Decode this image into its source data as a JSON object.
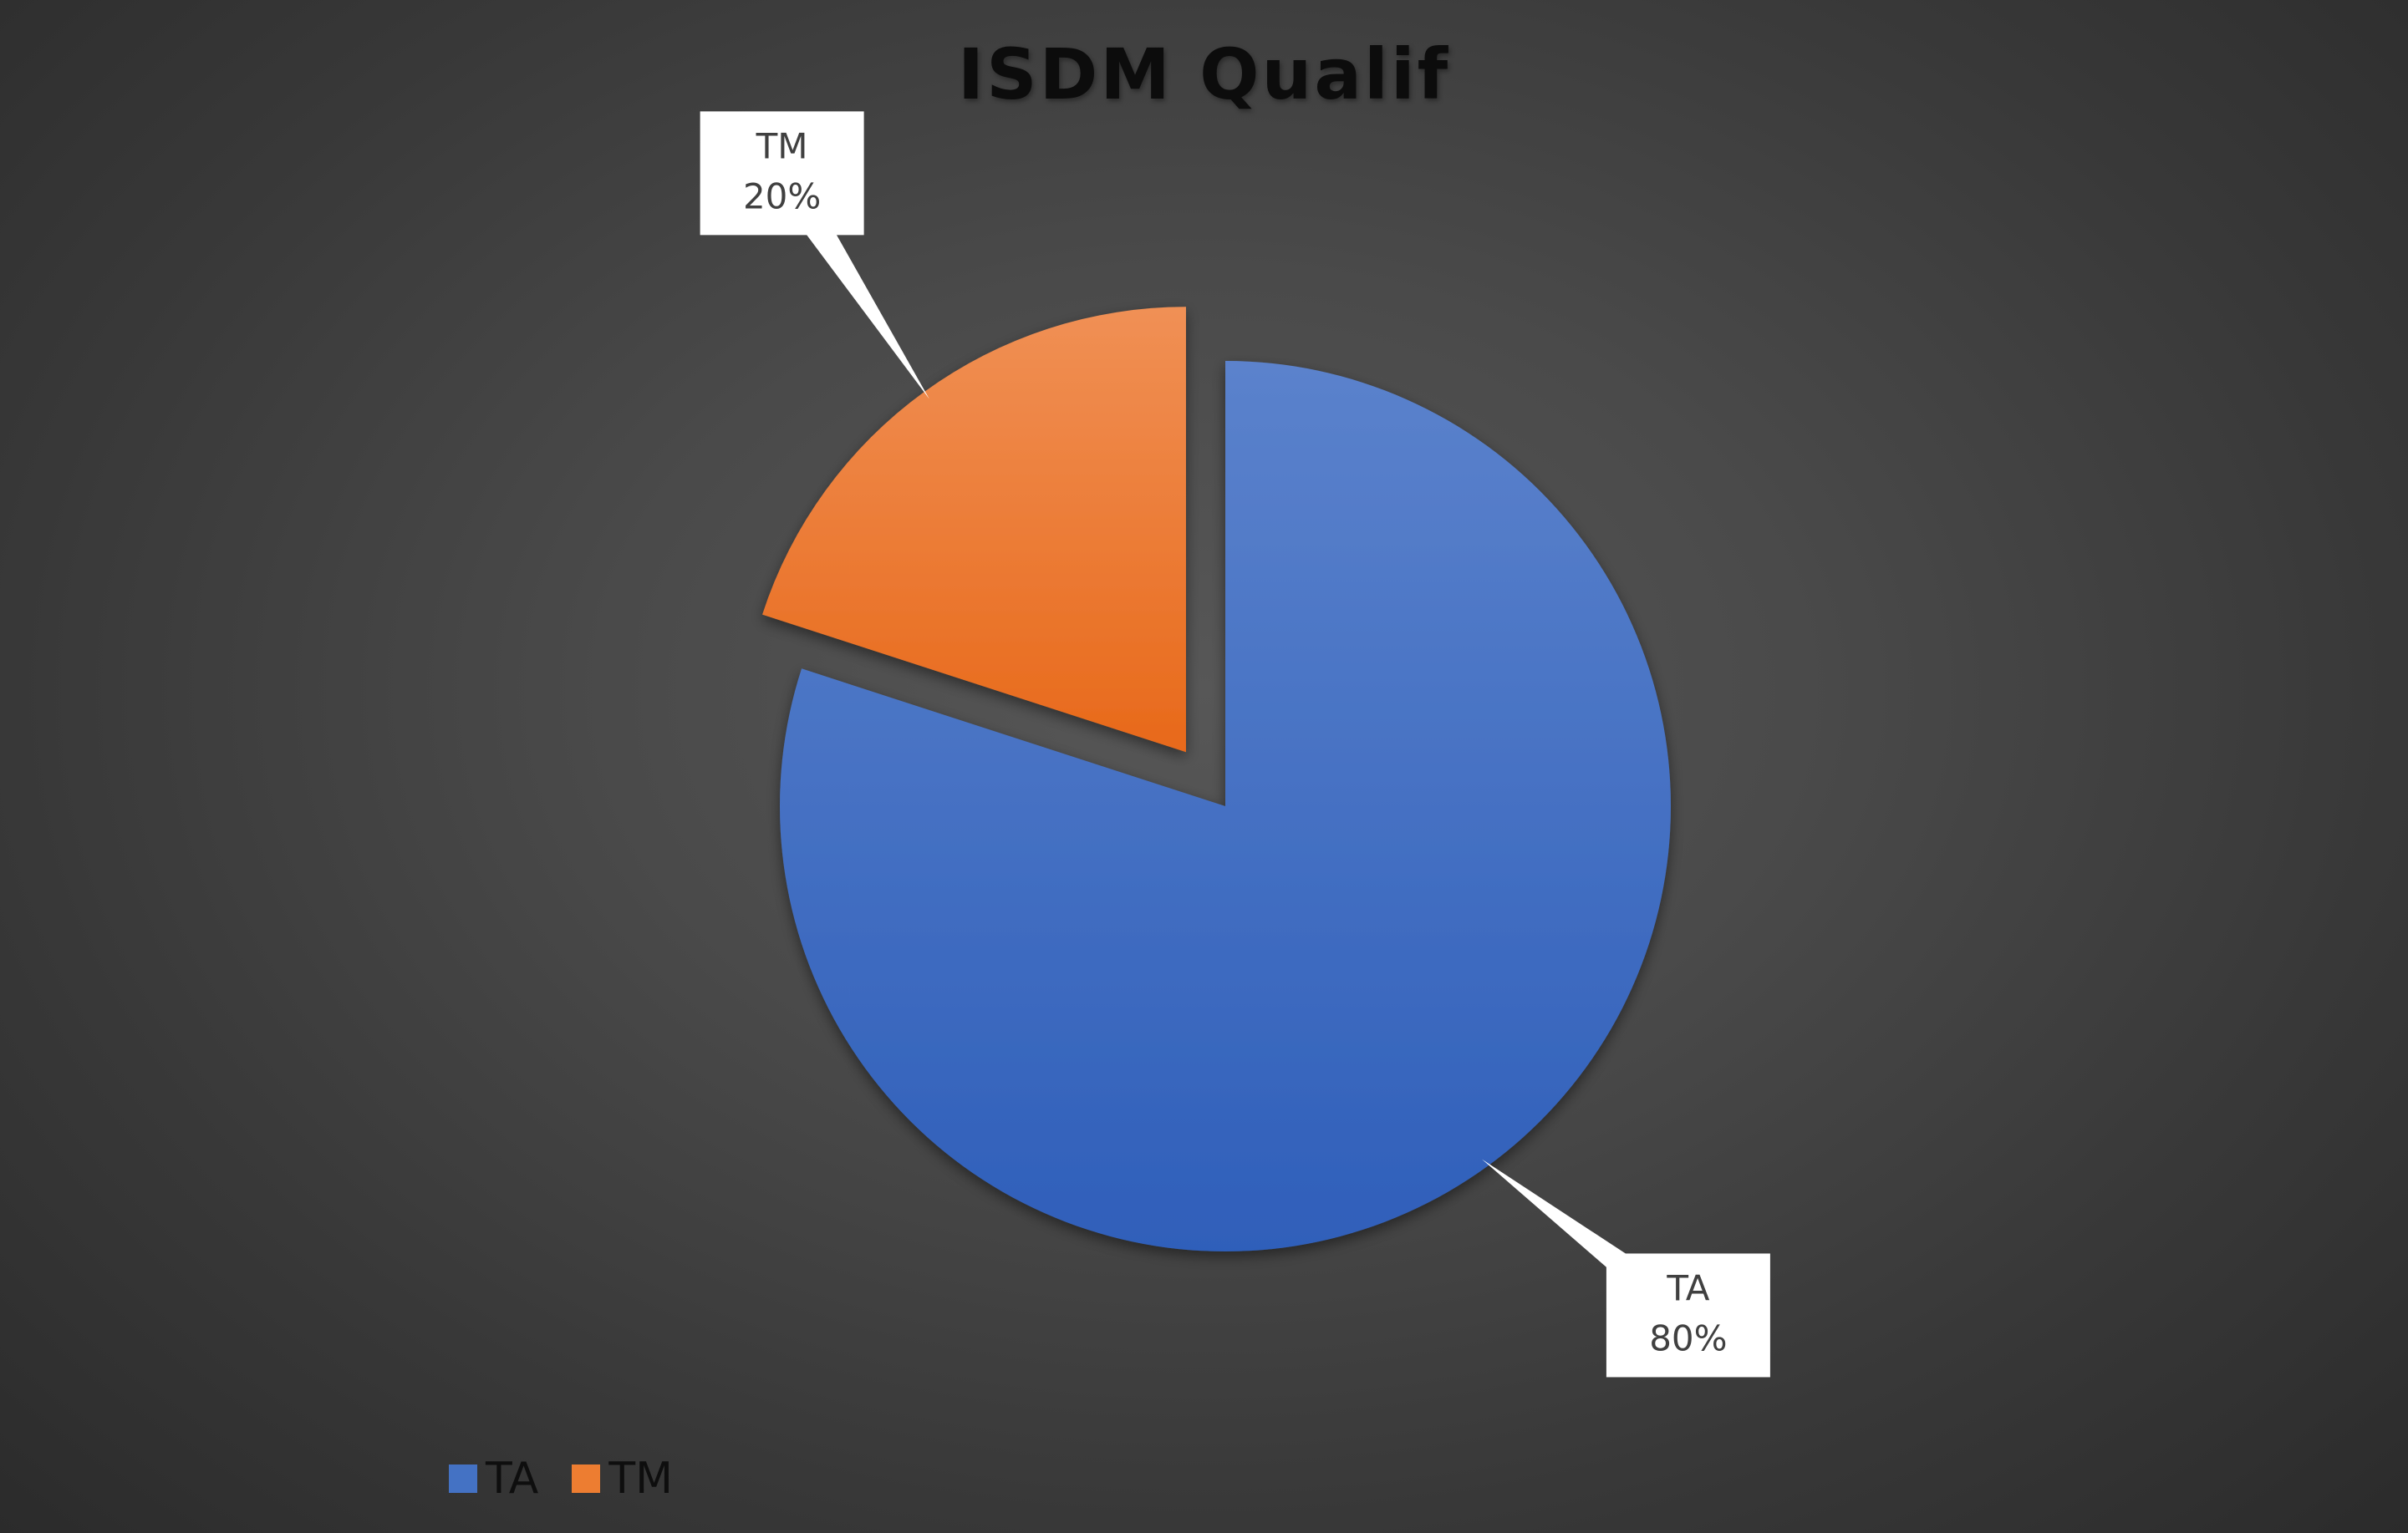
{
  "chart_data": {
    "type": "pie",
    "title": "ISDM Qualif",
    "slices": [
      {
        "label": "TA",
        "value": 80,
        "percent_label": "80%",
        "color": "#4472C4",
        "exploded": false
      },
      {
        "label": "TM",
        "value": 20,
        "percent_label": "20%",
        "color": "#ED7D31",
        "exploded": true
      }
    ],
    "start_angle_deg": 0,
    "direction": "clockwise",
    "data_labels": "category name and percentage in white callout boxes",
    "legend": {
      "position": "bottom-left",
      "entries": [
        "TA",
        "TM"
      ]
    },
    "background": "#404040"
  }
}
